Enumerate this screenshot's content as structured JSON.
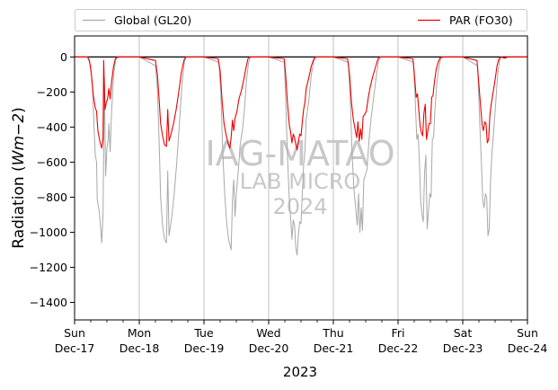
{
  "chart_data": {
    "type": "line",
    "ylabel": "Radiation (Wm−2)",
    "ylabel_prefix": "Radiation (",
    "ylabel_math": "Wm",
    "ylabel_math_suffix": "−2",
    "ylabel_suffix": ")",
    "xlabel": "2023",
    "ylim": [
      -1500,
      120
    ],
    "xlim": [
      0,
      7
    ],
    "yticks": [
      0,
      -200,
      -400,
      -600,
      -800,
      -1000,
      -1200,
      -1400
    ],
    "xticks": [
      {
        "x": 0,
        "day": "Sun",
        "date": "Dec-17"
      },
      {
        "x": 1,
        "day": "Mon",
        "date": "Dec-18"
      },
      {
        "x": 2,
        "day": "Tue",
        "date": "Dec-19"
      },
      {
        "x": 3,
        "day": "Wed",
        "date": "Dec-20"
      },
      {
        "x": 4,
        "day": "Thu",
        "date": "Dec-21"
      },
      {
        "x": 5,
        "day": "Fri",
        "date": "Dec-22"
      },
      {
        "x": 6,
        "day": "Sat",
        "date": "Dec-23"
      },
      {
        "x": 7,
        "day": "Sun",
        "date": "Dec-24"
      }
    ],
    "grid": "vertical",
    "legend_position": "top",
    "watermark": [
      "IAG-MATAO",
      "LAB MICRO",
      "2024"
    ],
    "series": [
      {
        "name": "Global (GL20)",
        "color": "#a8a8a8",
        "points": [
          [
            0.0,
            0
          ],
          [
            0.2,
            0
          ],
          [
            0.25,
            -50
          ],
          [
            0.28,
            -200
          ],
          [
            0.3,
            -390
          ],
          [
            0.32,
            -560
          ],
          [
            0.34,
            -600
          ],
          [
            0.35,
            -810
          ],
          [
            0.38,
            -880
          ],
          [
            0.4,
            -960
          ],
          [
            0.42,
            -1060
          ],
          [
            0.44,
            -900
          ],
          [
            0.46,
            -120
          ],
          [
            0.48,
            -680
          ],
          [
            0.5,
            -520
          ],
          [
            0.52,
            -470
          ],
          [
            0.53,
            -380
          ],
          [
            0.55,
            -540
          ],
          [
            0.57,
            -330
          ],
          [
            0.6,
            -120
          ],
          [
            0.63,
            -20
          ],
          [
            0.66,
            -5
          ],
          [
            0.7,
            0
          ],
          [
            1.0,
            0
          ],
          [
            1.25,
            -50
          ],
          [
            1.28,
            -180
          ],
          [
            1.31,
            -520
          ],
          [
            1.33,
            -800
          ],
          [
            1.36,
            -960
          ],
          [
            1.39,
            -1040
          ],
          [
            1.42,
            -1060
          ],
          [
            1.44,
            -650
          ],
          [
            1.46,
            -1020
          ],
          [
            1.5,
            -920
          ],
          [
            1.54,
            -780
          ],
          [
            1.58,
            -600
          ],
          [
            1.62,
            -380
          ],
          [
            1.66,
            -160
          ],
          [
            1.7,
            -20
          ],
          [
            1.73,
            0
          ],
          [
            2.0,
            0
          ],
          [
            2.23,
            -30
          ],
          [
            2.26,
            -200
          ],
          [
            2.29,
            -540
          ],
          [
            2.32,
            -780
          ],
          [
            2.35,
            -940
          ],
          [
            2.38,
            -1040
          ],
          [
            2.42,
            -1100
          ],
          [
            2.44,
            -820
          ],
          [
            2.46,
            -700
          ],
          [
            2.48,
            -910
          ],
          [
            2.5,
            -780
          ],
          [
            2.53,
            -650
          ],
          [
            2.56,
            -500
          ],
          [
            2.6,
            -400
          ],
          [
            2.63,
            -280
          ],
          [
            2.66,
            -120
          ],
          [
            2.69,
            -30
          ],
          [
            2.72,
            0
          ],
          [
            3.0,
            0
          ],
          [
            3.24,
            -30
          ],
          [
            3.26,
            -200
          ],
          [
            3.29,
            -560
          ],
          [
            3.32,
            -820
          ],
          [
            3.34,
            -920
          ],
          [
            3.36,
            -1040
          ],
          [
            3.38,
            -930
          ],
          [
            3.4,
            -960
          ],
          [
            3.42,
            -1090
          ],
          [
            3.44,
            -1130
          ],
          [
            3.46,
            -1010
          ],
          [
            3.48,
            -940
          ],
          [
            3.5,
            -950
          ],
          [
            3.52,
            -780
          ],
          [
            3.54,
            -620
          ],
          [
            3.56,
            -540
          ],
          [
            3.58,
            -360
          ],
          [
            3.62,
            -250
          ],
          [
            3.66,
            -100
          ],
          [
            3.7,
            -20
          ],
          [
            3.73,
            0
          ],
          [
            4.0,
            0
          ],
          [
            4.23,
            -30
          ],
          [
            4.26,
            -230
          ],
          [
            4.29,
            -560
          ],
          [
            4.32,
            -760
          ],
          [
            4.35,
            -880
          ],
          [
            4.37,
            -960
          ],
          [
            4.39,
            -780
          ],
          [
            4.41,
            -1000
          ],
          [
            4.43,
            -860
          ],
          [
            4.45,
            -990
          ],
          [
            4.47,
            -700
          ],
          [
            4.49,
            -680
          ],
          [
            4.52,
            -640
          ],
          [
            4.55,
            -480
          ],
          [
            4.58,
            -360
          ],
          [
            4.62,
            -240
          ],
          [
            4.66,
            -120
          ],
          [
            4.7,
            -20
          ],
          [
            4.73,
            0
          ],
          [
            5.0,
            0
          ],
          [
            5.24,
            -30
          ],
          [
            5.26,
            -200
          ],
          [
            5.29,
            -470
          ],
          [
            5.31,
            -440
          ],
          [
            5.33,
            -600
          ],
          [
            5.35,
            -820
          ],
          [
            5.37,
            -900
          ],
          [
            5.39,
            -940
          ],
          [
            5.41,
            -660
          ],
          [
            5.43,
            -560
          ],
          [
            5.45,
            -980
          ],
          [
            5.47,
            -880
          ],
          [
            5.49,
            -780
          ],
          [
            5.51,
            -800
          ],
          [
            5.53,
            -470
          ],
          [
            5.55,
            -460
          ],
          [
            5.57,
            -300
          ],
          [
            5.6,
            -150
          ],
          [
            5.63,
            -60
          ],
          [
            5.66,
            -10
          ],
          [
            5.7,
            0
          ],
          [
            6.0,
            0
          ],
          [
            6.23,
            -50
          ],
          [
            6.26,
            -350
          ],
          [
            6.29,
            -620
          ],
          [
            6.31,
            -820
          ],
          [
            6.33,
            -860
          ],
          [
            6.35,
            -780
          ],
          [
            6.37,
            -800
          ],
          [
            6.39,
            -1020
          ],
          [
            6.41,
            -980
          ],
          [
            6.43,
            -700
          ],
          [
            6.45,
            -560
          ],
          [
            6.48,
            -410
          ],
          [
            6.51,
            -260
          ],
          [
            6.54,
            -100
          ],
          [
            6.57,
            -20
          ],
          [
            6.6,
            0
          ],
          [
            6.65,
            -10
          ],
          [
            6.7,
            0
          ],
          [
            7.0,
            0
          ]
        ]
      },
      {
        "name": "PAR (FO30)",
        "color": "#ee0000",
        "points": [
          [
            0.0,
            0
          ],
          [
            0.2,
            0
          ],
          [
            0.23,
            -20
          ],
          [
            0.26,
            -100
          ],
          [
            0.29,
            -220
          ],
          [
            0.32,
            -290
          ],
          [
            0.34,
            -310
          ],
          [
            0.36,
            -420
          ],
          [
            0.39,
            -480
          ],
          [
            0.42,
            -520
          ],
          [
            0.44,
            -460
          ],
          [
            0.45,
            -20
          ],
          [
            0.47,
            -300
          ],
          [
            0.49,
            -260
          ],
          [
            0.51,
            -240
          ],
          [
            0.53,
            -180
          ],
          [
            0.55,
            -240
          ],
          [
            0.57,
            -150
          ],
          [
            0.6,
            -60
          ],
          [
            0.63,
            -10
          ],
          [
            0.66,
            0
          ],
          [
            1.0,
            0
          ],
          [
            1.25,
            -20
          ],
          [
            1.28,
            -100
          ],
          [
            1.31,
            -260
          ],
          [
            1.33,
            -380
          ],
          [
            1.36,
            -450
          ],
          [
            1.39,
            -500
          ],
          [
            1.42,
            -510
          ],
          [
            1.44,
            -300
          ],
          [
            1.46,
            -480
          ],
          [
            1.49,
            -440
          ],
          [
            1.53,
            -380
          ],
          [
            1.57,
            -300
          ],
          [
            1.61,
            -200
          ],
          [
            1.65,
            -90
          ],
          [
            1.69,
            -20
          ],
          [
            1.72,
            0
          ],
          [
            2.0,
            0
          ],
          [
            2.22,
            -10
          ],
          [
            2.25,
            -80
          ],
          [
            2.28,
            -250
          ],
          [
            2.31,
            -380
          ],
          [
            2.34,
            -440
          ],
          [
            2.37,
            -490
          ],
          [
            2.4,
            -520
          ],
          [
            2.42,
            -460
          ],
          [
            2.44,
            -360
          ],
          [
            2.46,
            -420
          ],
          [
            2.48,
            -350
          ],
          [
            2.51,
            -310
          ],
          [
            2.54,
            -240
          ],
          [
            2.58,
            -190
          ],
          [
            2.62,
            -120
          ],
          [
            2.65,
            -60
          ],
          [
            2.68,
            -10
          ],
          [
            2.71,
            0
          ],
          [
            3.0,
            0
          ],
          [
            3.24,
            -10
          ],
          [
            3.26,
            -90
          ],
          [
            3.29,
            -260
          ],
          [
            3.32,
            -390
          ],
          [
            3.34,
            -430
          ],
          [
            3.36,
            -490
          ],
          [
            3.38,
            -440
          ],
          [
            3.4,
            -460
          ],
          [
            3.42,
            -500
          ],
          [
            3.44,
            -530
          ],
          [
            3.46,
            -480
          ],
          [
            3.48,
            -440
          ],
          [
            3.5,
            -450
          ],
          [
            3.52,
            -370
          ],
          [
            3.54,
            -300
          ],
          [
            3.56,
            -260
          ],
          [
            3.58,
            -180
          ],
          [
            3.62,
            -120
          ],
          [
            3.66,
            -50
          ],
          [
            3.7,
            -10
          ],
          [
            3.73,
            0
          ],
          [
            4.0,
            0
          ],
          [
            4.22,
            -10
          ],
          [
            4.25,
            -100
          ],
          [
            4.28,
            -260
          ],
          [
            4.31,
            -360
          ],
          [
            4.34,
            -420
          ],
          [
            4.36,
            -460
          ],
          [
            4.38,
            -370
          ],
          [
            4.4,
            -480
          ],
          [
            4.42,
            -410
          ],
          [
            4.44,
            -470
          ],
          [
            4.46,
            -340
          ],
          [
            4.48,
            -330
          ],
          [
            4.51,
            -310
          ],
          [
            4.54,
            -230
          ],
          [
            4.57,
            -170
          ],
          [
            4.61,
            -110
          ],
          [
            4.65,
            -60
          ],
          [
            4.69,
            -10
          ],
          [
            4.72,
            0
          ],
          [
            5.0,
            0
          ],
          [
            5.23,
            -10
          ],
          [
            5.25,
            -90
          ],
          [
            5.28,
            -230
          ],
          [
            5.3,
            -210
          ],
          [
            5.32,
            -300
          ],
          [
            5.34,
            -390
          ],
          [
            5.36,
            -430
          ],
          [
            5.38,
            -450
          ],
          [
            5.4,
            -320
          ],
          [
            5.42,
            -270
          ],
          [
            5.44,
            -470
          ],
          [
            5.46,
            -420
          ],
          [
            5.48,
            -380
          ],
          [
            5.5,
            -380
          ],
          [
            5.52,
            -230
          ],
          [
            5.54,
            -220
          ],
          [
            5.56,
            -150
          ],
          [
            5.59,
            -70
          ],
          [
            5.62,
            -30
          ],
          [
            5.65,
            -5
          ],
          [
            5.69,
            0
          ],
          [
            6.0,
            0
          ],
          [
            6.22,
            -20
          ],
          [
            6.25,
            -160
          ],
          [
            6.28,
            -300
          ],
          [
            6.3,
            -390
          ],
          [
            6.32,
            -420
          ],
          [
            6.34,
            -370
          ],
          [
            6.36,
            -380
          ],
          [
            6.38,
            -490
          ],
          [
            6.4,
            -470
          ],
          [
            6.42,
            -330
          ],
          [
            6.44,
            -270
          ],
          [
            6.47,
            -200
          ],
          [
            6.5,
            -130
          ],
          [
            6.53,
            -50
          ],
          [
            6.56,
            -10
          ],
          [
            6.59,
            0
          ],
          [
            6.64,
            -5
          ],
          [
            6.7,
            0
          ],
          [
            7.0,
            0
          ]
        ]
      }
    ]
  }
}
